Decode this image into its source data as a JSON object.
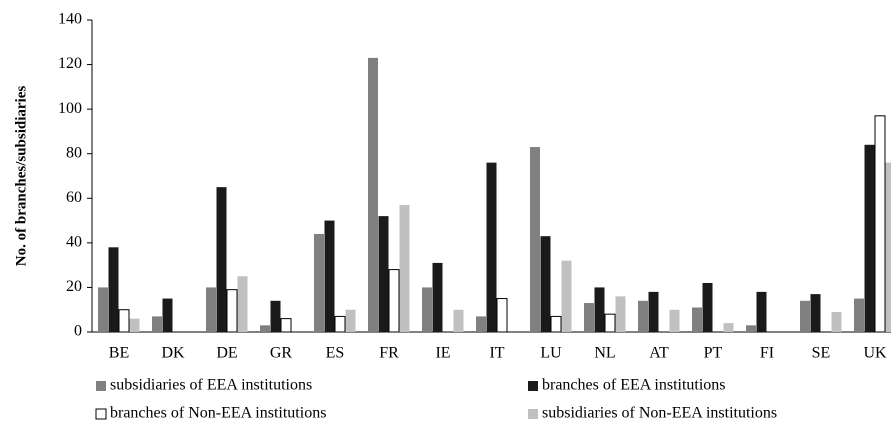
{
  "chart_data": {
    "type": "bar",
    "y_label": "No. of branches/subsidiaries",
    "categories": [
      "BE",
      "DK",
      "DE",
      "GR",
      "ES",
      "FR",
      "IE",
      "IT",
      "LU",
      "NL",
      "AT",
      "PT",
      "FI",
      "SE",
      "UK"
    ],
    "series": [
      {
        "name": "subsidiaries of EEA institutions",
        "color": "#808080",
        "values": [
          20,
          7,
          20,
          3,
          44,
          123,
          20,
          7,
          83,
          13,
          14,
          11,
          3,
          14,
          15
        ]
      },
      {
        "name": "branches of EEA institutions",
        "color": "#1a1a1a",
        "values": [
          38,
          15,
          65,
          14,
          50,
          52,
          31,
          76,
          43,
          20,
          18,
          22,
          18,
          17,
          84
        ]
      },
      {
        "name": "branches of Non-EEA institutions",
        "color": "#ffffff",
        "values": [
          10,
          0,
          19,
          6,
          7,
          28,
          0,
          15,
          7,
          8,
          0,
          0,
          0,
          0,
          97
        ]
      },
      {
        "name": "subsidiaries of Non-EEA institutions",
        "color": "#c0c0c0",
        "values": [
          6,
          0,
          25,
          0,
          10,
          57,
          10,
          0,
          32,
          16,
          10,
          4,
          0,
          9,
          76
        ]
      }
    ],
    "ylim": [
      0,
      140
    ],
    "yticks": [
      0,
      20,
      40,
      60,
      80,
      100,
      120,
      140
    ],
    "legend": "bottom"
  }
}
